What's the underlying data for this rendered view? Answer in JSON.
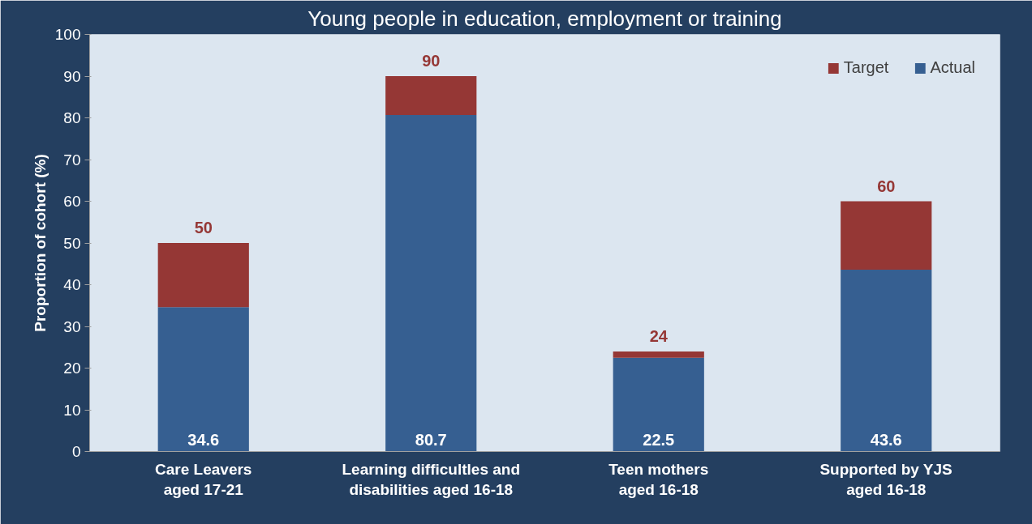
{
  "chart_data": {
    "type": "bar",
    "title": "Young people in education, employment or training",
    "ylabel": "Proportion of cohort (%)",
    "categories": [
      "Care Leavers\naged 17-21",
      "Learning difficultles and\ndisabilities aged 16-18",
      "Teen mothers\naged 16-18",
      "Supported by YJS\naged 16-18"
    ],
    "series": [
      {
        "name": "Actual",
        "color": "#365f91",
        "values": [
          34.6,
          80.7,
          22.5,
          43.6
        ],
        "value_labels": [
          "34.6",
          "80.7",
          "22.5",
          "43.6"
        ]
      },
      {
        "name": "Target",
        "color": "#953735",
        "values": [
          15.4,
          9.3,
          1.5,
          16.4
        ]
      }
    ],
    "stacked": true,
    "totals": [
      "50",
      "90",
      "24",
      "60"
    ],
    "ylim": [
      0,
      100
    ],
    "yticks": [
      0,
      10,
      20,
      30,
      40,
      50,
      60,
      70,
      80,
      90,
      100
    ],
    "grid": false,
    "legend": "top right"
  }
}
